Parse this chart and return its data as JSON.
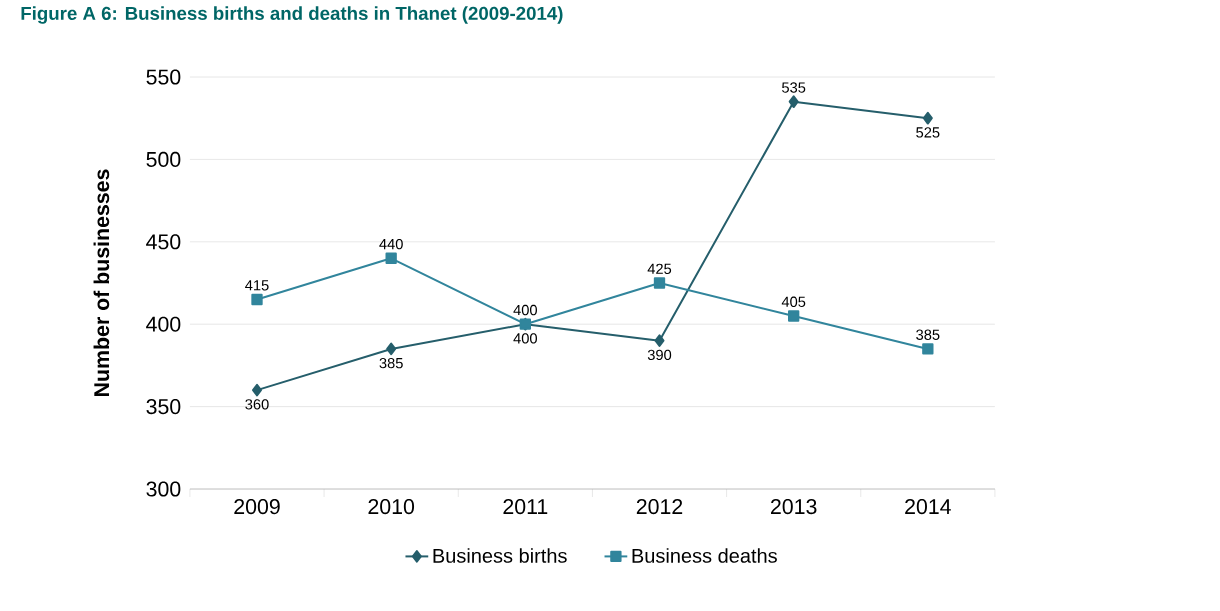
{
  "chart_data": {
    "type": "line",
    "title": "Figure A 6: Business births and deaths in Thanet (2009-2014)",
    "ylabel": "Number of businesses",
    "categories": [
      "2009",
      "2010",
      "2011",
      "2012",
      "2013",
      "2014"
    ],
    "series": [
      {
        "name": "Business births",
        "color": "#255e6b",
        "marker": "diamond",
        "values": [
          360,
          385,
          400,
          390,
          535,
          525
        ]
      },
      {
        "name": "Business deaths",
        "color": "#31859c",
        "marker": "square",
        "values": [
          415,
          440,
          400,
          425,
          405,
          385
        ]
      }
    ],
    "ylim": [
      300,
      550
    ],
    "yticks": [
      300,
      350,
      400,
      450,
      500,
      550
    ],
    "grid": "y",
    "legend": "bottom",
    "data_labels": true,
    "line_style": "solid"
  }
}
